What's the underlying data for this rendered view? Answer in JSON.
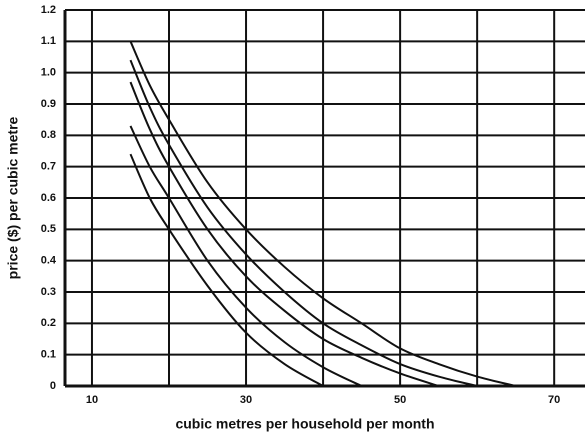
{
  "chart_data": {
    "type": "line",
    "xlabel": "cubic metres per household per month",
    "ylabel": "price ($) per cubic metre",
    "xlim": [
      6.5,
      74
    ],
    "xticks": [
      10,
      30,
      50,
      70
    ],
    "x_minor_ticks": [
      20,
      40,
      60
    ],
    "ylim": [
      0,
      1.2
    ],
    "yticks": [
      0,
      0.1,
      0.2,
      0.3,
      0.4,
      0.5,
      0.6,
      0.7,
      0.8,
      0.9,
      {
        "value": 1,
        "label": "1.0"
      },
      1.1,
      1.2
    ],
    "grid": true,
    "series": [
      {
        "color": "#111111",
        "x": [
          15,
          17.5,
          20,
          25,
          30,
          35,
          40
        ],
        "values": [
          0.74,
          0.6,
          0.5,
          0.32,
          0.17,
          0.07,
          0
        ]
      },
      {
        "color": "#111111",
        "x": [
          15,
          17.5,
          20,
          25,
          30,
          35,
          40,
          45
        ],
        "values": [
          0.83,
          0.7,
          0.6,
          0.4,
          0.25,
          0.14,
          0.06,
          0
        ]
      },
      {
        "color": "#111111",
        "x": [
          15,
          17.5,
          20,
          25,
          30,
          35,
          40,
          45,
          50,
          55
        ],
        "values": [
          0.97,
          0.82,
          0.7,
          0.5,
          0.35,
          0.24,
          0.15,
          0.09,
          0.04,
          0
        ]
      },
      {
        "color": "#111111",
        "x": [
          15,
          17.5,
          20,
          25,
          30,
          35,
          40,
          45,
          50,
          55,
          60
        ],
        "values": [
          1.04,
          0.89,
          0.77,
          0.57,
          0.42,
          0.3,
          0.2,
          0.13,
          0.07,
          0.03,
          0
        ]
      },
      {
        "color": "#111111",
        "x": [
          15,
          17.5,
          20,
          25,
          30,
          35,
          40,
          45,
          50,
          55,
          60,
          65
        ],
        "values": [
          1.1,
          0.96,
          0.85,
          0.65,
          0.5,
          0.38,
          0.28,
          0.2,
          0.12,
          0.07,
          0.03,
          0
        ]
      }
    ]
  }
}
